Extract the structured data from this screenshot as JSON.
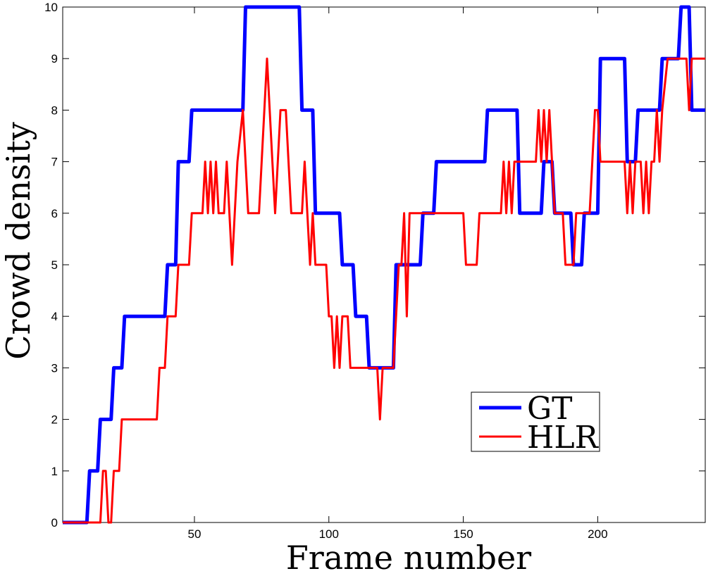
{
  "chart_data": {
    "type": "line",
    "title": "",
    "xlabel": "Frame number",
    "ylabel": "Crowd density",
    "xlim": [
      1,
      240
    ],
    "ylim": [
      0,
      10
    ],
    "xticks": [
      50,
      100,
      150,
      200
    ],
    "yticks": [
      0,
      1,
      2,
      3,
      4,
      5,
      6,
      7,
      8,
      9,
      10
    ],
    "grid": false,
    "legend": {
      "placement": "lower-right",
      "entries": [
        "GT",
        "HLR"
      ]
    },
    "series": [
      {
        "name": "GT",
        "color": "#0000ff",
        "points": [
          [
            1,
            0
          ],
          [
            10,
            0
          ],
          [
            11,
            1
          ],
          [
            14,
            1
          ],
          [
            15,
            2
          ],
          [
            19,
            2
          ],
          [
            20,
            3
          ],
          [
            23,
            3
          ],
          [
            24,
            4
          ],
          [
            39,
            4
          ],
          [
            40,
            5
          ],
          [
            43,
            5
          ],
          [
            44,
            7
          ],
          [
            48,
            7
          ],
          [
            49,
            8
          ],
          [
            68,
            8
          ],
          [
            69,
            10
          ],
          [
            89,
            10
          ],
          [
            90,
            8
          ],
          [
            94,
            8
          ],
          [
            95,
            6
          ],
          [
            104,
            6
          ],
          [
            105,
            5
          ],
          [
            109,
            5
          ],
          [
            110,
            4
          ],
          [
            114,
            4
          ],
          [
            115,
            3
          ],
          [
            124,
            3
          ],
          [
            125,
            5
          ],
          [
            134,
            5
          ],
          [
            135,
            6
          ],
          [
            139,
            6
          ],
          [
            140,
            7
          ],
          [
            158,
            7
          ],
          [
            159,
            8
          ],
          [
            170,
            8
          ],
          [
            171,
            6
          ],
          [
            179,
            6
          ],
          [
            180,
            7
          ],
          [
            183,
            7
          ],
          [
            184,
            6
          ],
          [
            190,
            6
          ],
          [
            191,
            5
          ],
          [
            194,
            5
          ],
          [
            195,
            6
          ],
          [
            200,
            6
          ],
          [
            201,
            9
          ],
          [
            210,
            9
          ],
          [
            211,
            7
          ],
          [
            214,
            7
          ],
          [
            215,
            8
          ],
          [
            223,
            8
          ],
          [
            224,
            9
          ],
          [
            230,
            9
          ],
          [
            231,
            10
          ],
          [
            234,
            10
          ],
          [
            235,
            8
          ],
          [
            240,
            8
          ]
        ]
      },
      {
        "name": "HLR",
        "color": "#ff0000",
        "points": [
          [
            1,
            0
          ],
          [
            15,
            0
          ],
          [
            16,
            1
          ],
          [
            17,
            1
          ],
          [
            18,
            0
          ],
          [
            19,
            0
          ],
          [
            20,
            1
          ],
          [
            22,
            1
          ],
          [
            23,
            2
          ],
          [
            36,
            2
          ],
          [
            37,
            3
          ],
          [
            39,
            3
          ],
          [
            40,
            4
          ],
          [
            43,
            4
          ],
          [
            44,
            5
          ],
          [
            48,
            5
          ],
          [
            49,
            6
          ],
          [
            53,
            6
          ],
          [
            54,
            7
          ],
          [
            55,
            6
          ],
          [
            56,
            7
          ],
          [
            57,
            6
          ],
          [
            58,
            7
          ],
          [
            59,
            6
          ],
          [
            61,
            6
          ],
          [
            62,
            7
          ],
          [
            63,
            6
          ],
          [
            64,
            5
          ],
          [
            65,
            6
          ],
          [
            66,
            7
          ],
          [
            68,
            8
          ],
          [
            69,
            7
          ],
          [
            70,
            6
          ],
          [
            74,
            6
          ],
          [
            75,
            7
          ],
          [
            76,
            8
          ],
          [
            77,
            9
          ],
          [
            78,
            8
          ],
          [
            79,
            7
          ],
          [
            80,
            6
          ],
          [
            81,
            7
          ],
          [
            82,
            8
          ],
          [
            84,
            8
          ],
          [
            85,
            7
          ],
          [
            86,
            6
          ],
          [
            90,
            6
          ],
          [
            91,
            7
          ],
          [
            92,
            6
          ],
          [
            93,
            5
          ],
          [
            94,
            6
          ],
          [
            95,
            5
          ],
          [
            99,
            5
          ],
          [
            100,
            4
          ],
          [
            101,
            4
          ],
          [
            102,
            3
          ],
          [
            103,
            4
          ],
          [
            104,
            3
          ],
          [
            105,
            4
          ],
          [
            107,
            4
          ],
          [
            108,
            3
          ],
          [
            118,
            3
          ],
          [
            119,
            2
          ],
          [
            120,
            3
          ],
          [
            124,
            3
          ],
          [
            125,
            4
          ],
          [
            126,
            5
          ],
          [
            127,
            5
          ],
          [
            128,
            6
          ],
          [
            129,
            4
          ],
          [
            130,
            6
          ],
          [
            131,
            6
          ],
          [
            132,
            6
          ],
          [
            150,
            6
          ],
          [
            151,
            5
          ],
          [
            155,
            5
          ],
          [
            156,
            6
          ],
          [
            164,
            6
          ],
          [
            165,
            7
          ],
          [
            166,
            6
          ],
          [
            167,
            7
          ],
          [
            168,
            6
          ],
          [
            169,
            7
          ],
          [
            177,
            7
          ],
          [
            178,
            8
          ],
          [
            179,
            7
          ],
          [
            180,
            8
          ],
          [
            181,
            7
          ],
          [
            182,
            8
          ],
          [
            183,
            7
          ],
          [
            184,
            6
          ],
          [
            187,
            6
          ],
          [
            188,
            5
          ],
          [
            191,
            5
          ],
          [
            192,
            6
          ],
          [
            197,
            6
          ],
          [
            198,
            7
          ],
          [
            199,
            8
          ],
          [
            200,
            8
          ],
          [
            201,
            7
          ],
          [
            210,
            7
          ],
          [
            211,
            6
          ],
          [
            212,
            7
          ],
          [
            213,
            6
          ],
          [
            214,
            7
          ],
          [
            216,
            7
          ],
          [
            217,
            6
          ],
          [
            218,
            7
          ],
          [
            219,
            6
          ],
          [
            220,
            7
          ],
          [
            221,
            7
          ],
          [
            222,
            8
          ],
          [
            223,
            7
          ],
          [
            224,
            8
          ],
          [
            226,
            9
          ],
          [
            233,
            9
          ],
          [
            234,
            8
          ],
          [
            235,
            9
          ],
          [
            240,
            9
          ]
        ]
      }
    ]
  }
}
